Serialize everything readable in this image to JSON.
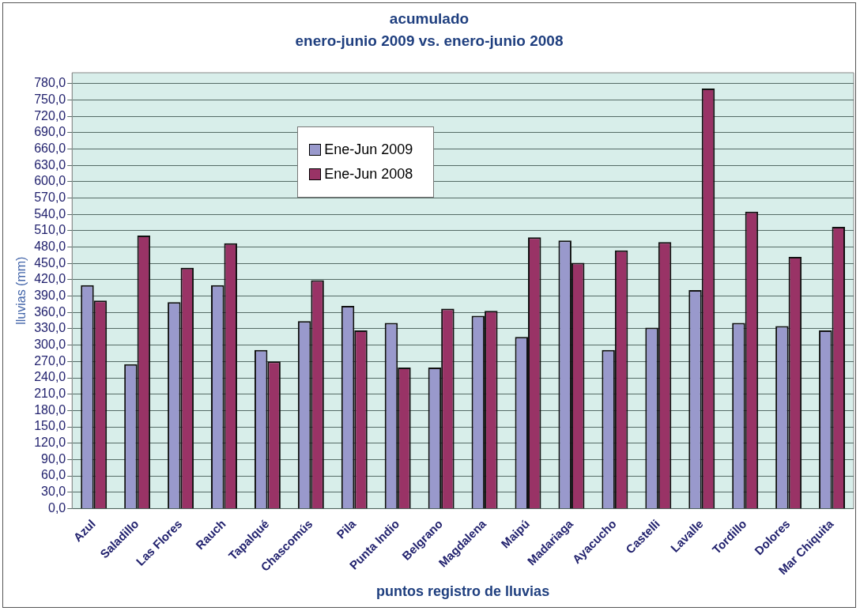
{
  "chart_data": {
    "type": "bar",
    "title": "acumulado",
    "subtitle": "enero-junio 2009 vs. enero-junio 2008",
    "xlabel": "puntos registro de lluvias",
    "ylabel": "lluvias (mm)",
    "categories": [
      "Azul",
      "Saladillo",
      "Las Flores",
      "Rauch",
      "Tapalqué",
      "Chascomús",
      "Pila",
      "Punta Indio",
      "Belgrano",
      "Magdalena",
      "Maipú",
      "Madariaga",
      "Ayacucho",
      "Castelli",
      "Lavalle",
      "Tordillo",
      "Dolores",
      "Mar Chiquita"
    ],
    "series": [
      {
        "name": "Ene-Jun 2009",
        "color": "#9999cc",
        "values": [
          410,
          265,
          379,
          410,
          291,
          344,
          372,
          341,
          259,
          354,
          315,
          492,
          291,
          332,
          401,
          341,
          335,
          327
        ]
      },
      {
        "name": "Ene-Jun 2008",
        "color": "#993366",
        "values": [
          382,
          501,
          442,
          487,
          270,
          419,
          327,
          259,
          367,
          363,
          498,
          451,
          474,
          489,
          771,
          545,
          462,
          517
        ]
      }
    ],
    "ylim": [
      0,
      800
    ],
    "yticks": [
      {
        "value": 0,
        "label": "0,0"
      },
      {
        "value": 30,
        "label": "30,0"
      },
      {
        "value": 60,
        "label": "60,0"
      },
      {
        "value": 90,
        "label": "90,0"
      },
      {
        "value": 120,
        "label": "120,0"
      },
      {
        "value": 150,
        "label": "150,0"
      },
      {
        "value": 180,
        "label": "180,0"
      },
      {
        "value": 210,
        "label": "210,0"
      },
      {
        "value": 240,
        "label": "240,0"
      },
      {
        "value": 270,
        "label": "270,0"
      },
      {
        "value": 300,
        "label": "300,0"
      },
      {
        "value": 330,
        "label": "330,0"
      },
      {
        "value": 360,
        "label": "360,0"
      },
      {
        "value": 390,
        "label": "390,0"
      },
      {
        "value": 420,
        "label": "420,0"
      },
      {
        "value": 450,
        "label": "450,0"
      },
      {
        "value": 480,
        "label": "480,0"
      },
      {
        "value": 510,
        "label": "510,0"
      },
      {
        "value": 540,
        "label": "540,0"
      },
      {
        "value": 570,
        "label": "570,0"
      },
      {
        "value": 600,
        "label": "600,0"
      },
      {
        "value": 630,
        "label": "630,0"
      },
      {
        "value": 660,
        "label": "660,0"
      },
      {
        "value": 690,
        "label": "690,0"
      },
      {
        "value": 720,
        "label": "720,0"
      },
      {
        "value": 750,
        "label": "750,0"
      },
      {
        "value": 780,
        "label": "780,0"
      }
    ],
    "grid": "y",
    "legend": "top left"
  }
}
